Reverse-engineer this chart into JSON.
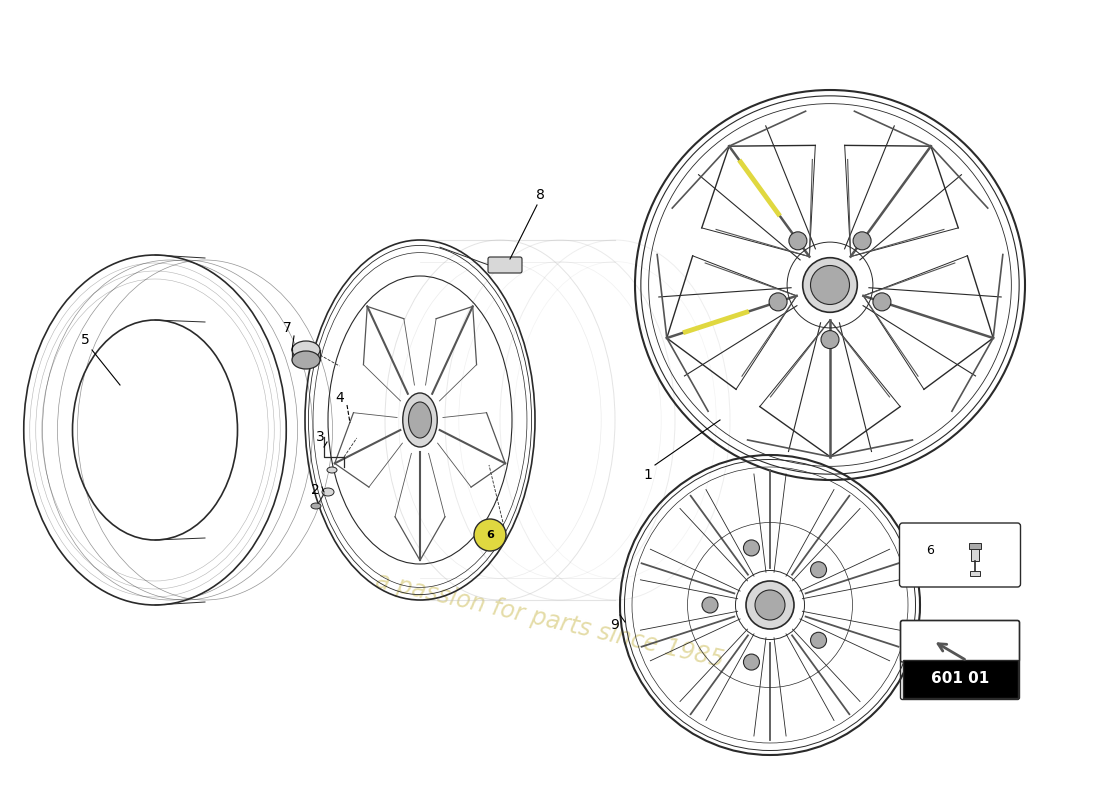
{
  "bg_color": "#ffffff",
  "watermark_line1": "a passion for parts since 1985",
  "watermark_color": "#cfc060",
  "part_number": "601 01",
  "line_color": "#2a2a2a",
  "light_gray": "#bbbbbb",
  "mid_gray": "#888888",
  "dark_gray": "#555555",
  "fill_gray": "#d8d8d8",
  "fill_dark": "#aaaaaa",
  "yellow_highlight": "#e0d840",
  "spoke_fill": "#c0c0c0",
  "rim_fill": "#e8e8e8"
}
